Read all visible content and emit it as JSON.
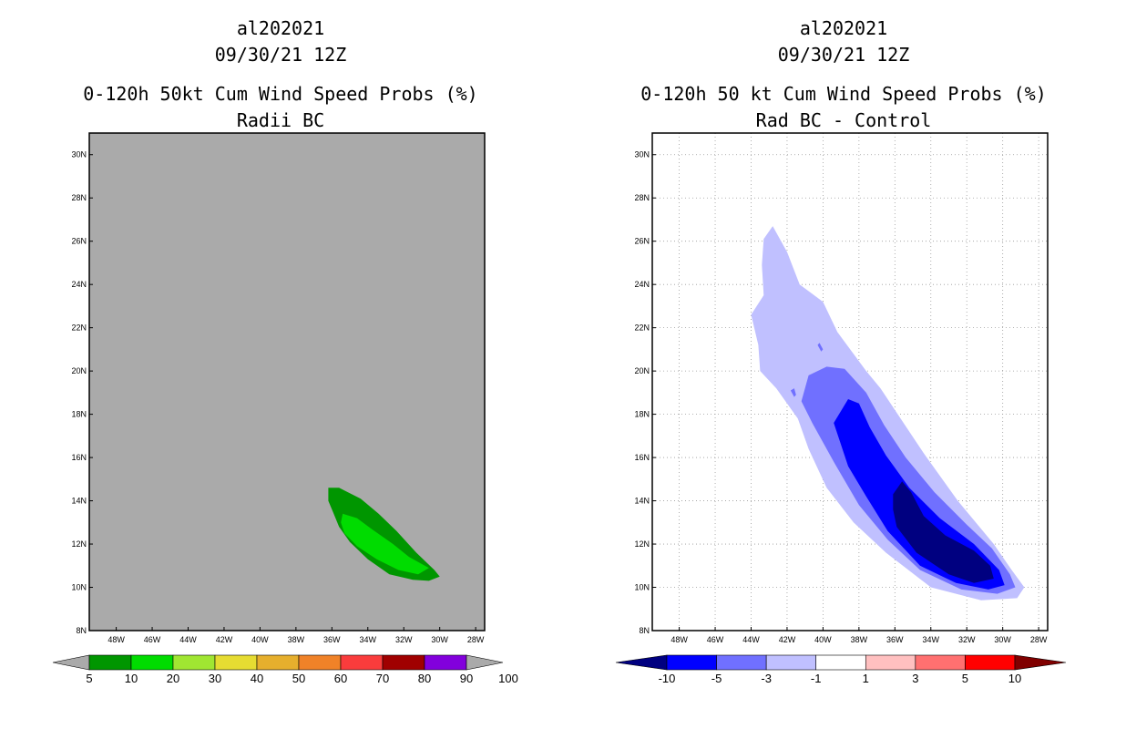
{
  "chart_data": [
    {
      "type": "contour-map",
      "title_lines": [
        "al202021",
        "09/30/21 12Z",
        "0-120h 50kt Cum Wind Speed Probs (%)",
        "Radii BC"
      ],
      "background": "#aaaaaa",
      "xlim": [
        -49.5,
        -27.5
      ],
      "ylim": [
        8,
        31
      ],
      "x_ticks": [
        -48,
        -46,
        -44,
        -42,
        -40,
        -38,
        -36,
        -34,
        -32,
        -30,
        -28
      ],
      "x_tick_labels": [
        "48W",
        "46W",
        "44W",
        "42W",
        "40W",
        "38W",
        "36W",
        "34W",
        "32W",
        "30W",
        "28W"
      ],
      "y_ticks": [
        8,
        10,
        12,
        14,
        16,
        18,
        20,
        22,
        24,
        26,
        28,
        30
      ],
      "y_tick_labels": [
        "8N",
        "10N",
        "12N",
        "14N",
        "16N",
        "18N",
        "20N",
        "22N",
        "24N",
        "26N",
        "28N",
        "30N"
      ],
      "grid": false,
      "colorbar": {
        "labels": [
          "5",
          "10",
          "20",
          "30",
          "40",
          "50",
          "60",
          "70",
          "80",
          "90",
          "100"
        ],
        "colors": [
          "#009600",
          "#00dc00",
          "#a0e632",
          "#e6dc32",
          "#e6af2d",
          "#f08228",
          "#fa3c3c",
          "#a00000",
          "#8200dc"
        ],
        "extend_color": "#aaaaaa"
      },
      "contours": [
        {
          "level": "5-10",
          "color": "#009600",
          "polygon": [
            [
              -36.2,
              14.6
            ],
            [
              -35.6,
              14.6
            ],
            [
              -34.4,
              14.1
            ],
            [
              -33.4,
              13.4
            ],
            [
              -32.4,
              12.6
            ],
            [
              -31.3,
              11.6
            ],
            [
              -30.3,
              10.8
            ],
            [
              -30.0,
              10.5
            ],
            [
              -30.6,
              10.3
            ],
            [
              -31.5,
              10.35
            ],
            [
              -32.8,
              10.6
            ],
            [
              -34.0,
              11.3
            ],
            [
              -35.0,
              12.1
            ],
            [
              -35.6,
              12.8
            ],
            [
              -35.9,
              13.4
            ],
            [
              -36.2,
              14.0
            ]
          ]
        },
        {
          "level": "10-20",
          "color": "#00dc00",
          "polygon": [
            [
              -35.4,
              13.4
            ],
            [
              -34.6,
              13.2
            ],
            [
              -33.8,
              12.7
            ],
            [
              -32.6,
              12.0
            ],
            [
              -31.7,
              11.4
            ],
            [
              -30.6,
              10.9
            ],
            [
              -31.2,
              10.6
            ],
            [
              -32.3,
              10.8
            ],
            [
              -33.5,
              11.3
            ],
            [
              -34.6,
              11.9
            ],
            [
              -35.3,
              12.5
            ],
            [
              -35.5,
              13.0
            ]
          ]
        }
      ]
    },
    {
      "type": "contour-map",
      "title_lines": [
        "al202021",
        "09/30/21 12Z",
        "0-120h 50 kt Cum Wind Speed Probs (%)",
        "Rad BC - Control"
      ],
      "background": "#ffffff",
      "xlim": [
        -49.5,
        -27.5
      ],
      "ylim": [
        8,
        31
      ],
      "x_ticks": [
        -48,
        -46,
        -44,
        -42,
        -40,
        -38,
        -36,
        -34,
        -32,
        -30,
        -28
      ],
      "x_tick_labels": [
        "48W",
        "46W",
        "44W",
        "42W",
        "40W",
        "38W",
        "36W",
        "34W",
        "32W",
        "30W",
        "28W"
      ],
      "y_ticks": [
        8,
        10,
        12,
        14,
        16,
        18,
        20,
        22,
        24,
        26,
        28,
        30
      ],
      "y_tick_labels": [
        "8N",
        "10N",
        "12N",
        "14N",
        "16N",
        "18N",
        "20N",
        "22N",
        "24N",
        "26N",
        "28N",
        "30N"
      ],
      "grid": true,
      "colorbar": {
        "labels": [
          "-10",
          "-5",
          "-3",
          "-1",
          "1",
          "3",
          "5",
          "10"
        ],
        "colors": [
          "#0000ff",
          "#7070ff",
          "#c0c0ff",
          "#ffffff",
          "#ffc0c0",
          "#ff7070",
          "#ff0000"
        ],
        "low_extend_color": "#000080",
        "high_extend_color": "#800000"
      },
      "contours": [
        {
          "level": "-3 to -1",
          "color": "#c0c0ff",
          "polygon": [
            [
              -42.8,
              26.7
            ],
            [
              -42.0,
              25.5
            ],
            [
              -41.3,
              24.0
            ],
            [
              -40.0,
              23.2
            ],
            [
              -39.2,
              21.8
            ],
            [
              -37.6,
              20.0
            ],
            [
              -36.8,
              19.2
            ],
            [
              -36.0,
              18.2
            ],
            [
              -34.4,
              16.2
            ],
            [
              -32.5,
              14.0
            ],
            [
              -30.5,
              12.0
            ],
            [
              -29.5,
              10.8
            ],
            [
              -28.8,
              10.0
            ],
            [
              -29.2,
              9.5
            ],
            [
              -31.2,
              9.4
            ],
            [
              -34.0,
              10.0
            ],
            [
              -36.5,
              11.6
            ],
            [
              -38.3,
              13.0
            ],
            [
              -39.8,
              14.6
            ],
            [
              -40.8,
              16.4
            ],
            [
              -41.4,
              17.8
            ],
            [
              -42.6,
              19.2
            ],
            [
              -43.5,
              20.0
            ],
            [
              -43.6,
              21.2
            ],
            [
              -44.0,
              22.6
            ],
            [
              -43.3,
              23.5
            ],
            [
              -43.4,
              24.9
            ],
            [
              -43.3,
              26.1
            ]
          ]
        },
        {
          "level": "-5 to -3",
          "color": "#7070ff",
          "polygon": [
            [
              -40.8,
              19.8
            ],
            [
              -39.8,
              20.2
            ],
            [
              -38.8,
              20.1
            ],
            [
              -37.6,
              19.0
            ],
            [
              -36.6,
              17.5
            ],
            [
              -35.4,
              16.0
            ],
            [
              -33.8,
              14.4
            ],
            [
              -32.0,
              12.9
            ],
            [
              -30.6,
              11.8
            ],
            [
              -29.6,
              10.6
            ],
            [
              -29.3,
              10.0
            ],
            [
              -30.3,
              9.7
            ],
            [
              -32.3,
              9.9
            ],
            [
              -34.6,
              10.8
            ],
            [
              -36.4,
              12.2
            ],
            [
              -38.0,
              13.8
            ],
            [
              -39.4,
              15.8
            ],
            [
              -40.6,
              17.6
            ],
            [
              -41.2,
              18.6
            ]
          ]
        },
        {
          "level": "-10 to -5",
          "color": "#0000ff",
          "polygon": [
            [
              -39.4,
              17.6
            ],
            [
              -38.6,
              18.7
            ],
            [
              -38.0,
              18.5
            ],
            [
              -37.4,
              17.4
            ],
            [
              -36.5,
              16.1
            ],
            [
              -35.2,
              14.6
            ],
            [
              -33.5,
              13.2
            ],
            [
              -31.6,
              12.0
            ],
            [
              -30.2,
              10.8
            ],
            [
              -29.9,
              10.1
            ],
            [
              -30.8,
              9.9
            ],
            [
              -32.6,
              10.2
            ],
            [
              -34.6,
              11.0
            ],
            [
              -36.4,
              12.6
            ],
            [
              -37.6,
              14.2
            ],
            [
              -38.6,
              15.6
            ]
          ]
        },
        {
          "level": "< -10",
          "color": "#000080",
          "polygon": [
            [
              -36.1,
              14.3
            ],
            [
              -35.6,
              14.9
            ],
            [
              -35.1,
              14.4
            ],
            [
              -34.4,
              13.3
            ],
            [
              -33.2,
              12.4
            ],
            [
              -31.6,
              11.7
            ],
            [
              -30.7,
              11.0
            ],
            [
              -30.5,
              10.4
            ],
            [
              -31.6,
              10.2
            ],
            [
              -33.0,
              10.6
            ],
            [
              -34.8,
              11.6
            ],
            [
              -35.9,
              12.8
            ],
            [
              -36.1,
              13.6
            ]
          ]
        },
        {
          "level": "-5 to -3 (isolated)",
          "color": "#7070ff",
          "polygon": [
            [
              -41.8,
              19.1
            ],
            [
              -41.6,
              18.8
            ],
            [
              -41.5,
              18.9
            ],
            [
              -41.6,
              19.2
            ]
          ]
        },
        {
          "level": "-5 to -3 (isolated)",
          "color": "#7070ff",
          "polygon": [
            [
              -40.3,
              21.2
            ],
            [
              -40.1,
              20.9
            ],
            [
              -40.0,
              21.0
            ],
            [
              -40.2,
              21.3
            ]
          ]
        }
      ]
    }
  ]
}
